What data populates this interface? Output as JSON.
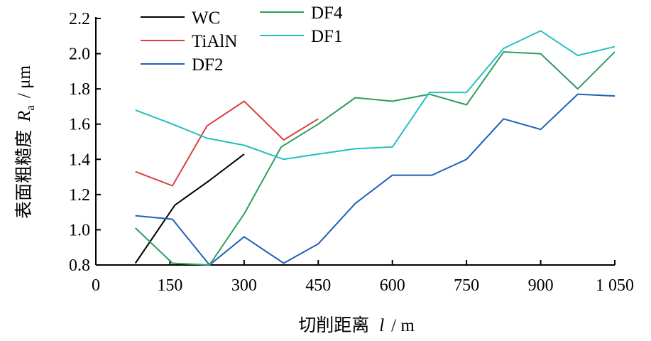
{
  "chart_data": {
    "type": "line",
    "xlabel": {
      "prefix": "切削距离",
      "var": "l",
      "unit": "/ m"
    },
    "ylabel": {
      "prefix": "表面粗糙度",
      "var": "R",
      "sub": "a",
      "unit": "/ μm"
    },
    "xlim": [
      0,
      1050
    ],
    "ylim": [
      0.8,
      2.2
    ],
    "xticks": [
      0,
      150,
      300,
      450,
      600,
      750,
      900,
      1050
    ],
    "xtick_labels": [
      "0",
      "150",
      "300",
      "450",
      "600",
      "750",
      "900",
      "1 050"
    ],
    "yticks": [
      0.8,
      1.0,
      1.2,
      1.4,
      1.6,
      1.8,
      2.0,
      2.2
    ],
    "ytick_labels": [
      "0.8",
      "1.0",
      "1.2",
      "1.4",
      "1.6",
      "1.8",
      "2.0",
      "2.2"
    ],
    "grid": false,
    "legend_position": "top-left",
    "series": [
      {
        "name": "WC",
        "color": "#000000",
        "x": [
          80,
          160,
          230,
          300
        ],
        "y": [
          0.81,
          1.14,
          1.28,
          1.43
        ]
      },
      {
        "name": "TiAlN",
        "color": "#d94040",
        "x": [
          80,
          155,
          225,
          300,
          380,
          450
        ],
        "y": [
          1.33,
          1.25,
          1.59,
          1.73,
          1.51,
          1.63
        ]
      },
      {
        "name": "DF2",
        "color": "#1f5fb8",
        "x": [
          80,
          155,
          230,
          300,
          380,
          450,
          525,
          600,
          680,
          750,
          825,
          900,
          975,
          1050
        ],
        "y": [
          1.08,
          1.06,
          0.8,
          0.96,
          0.81,
          0.92,
          1.15,
          1.31,
          1.31,
          1.4,
          1.63,
          1.57,
          1.77,
          1.76
        ]
      },
      {
        "name": "DF4",
        "color": "#2e9e5e",
        "x": [
          80,
          155,
          230,
          300,
          375,
          450,
          525,
          600,
          675,
          750,
          825,
          900,
          975,
          1050
        ],
        "y": [
          1.01,
          0.81,
          0.8,
          1.09,
          1.47,
          1.6,
          1.75,
          1.73,
          1.77,
          1.71,
          2.01,
          2.0,
          1.8,
          2.01
        ]
      },
      {
        "name": "DF1",
        "color": "#22c0c0",
        "x": [
          80,
          155,
          225,
          300,
          380,
          450,
          525,
          600,
          675,
          750,
          825,
          900,
          975,
          1050
        ],
        "y": [
          1.68,
          1.6,
          1.52,
          1.48,
          1.4,
          1.43,
          1.46,
          1.47,
          1.78,
          1.78,
          2.03,
          2.13,
          1.99,
          2.04
        ]
      }
    ]
  }
}
